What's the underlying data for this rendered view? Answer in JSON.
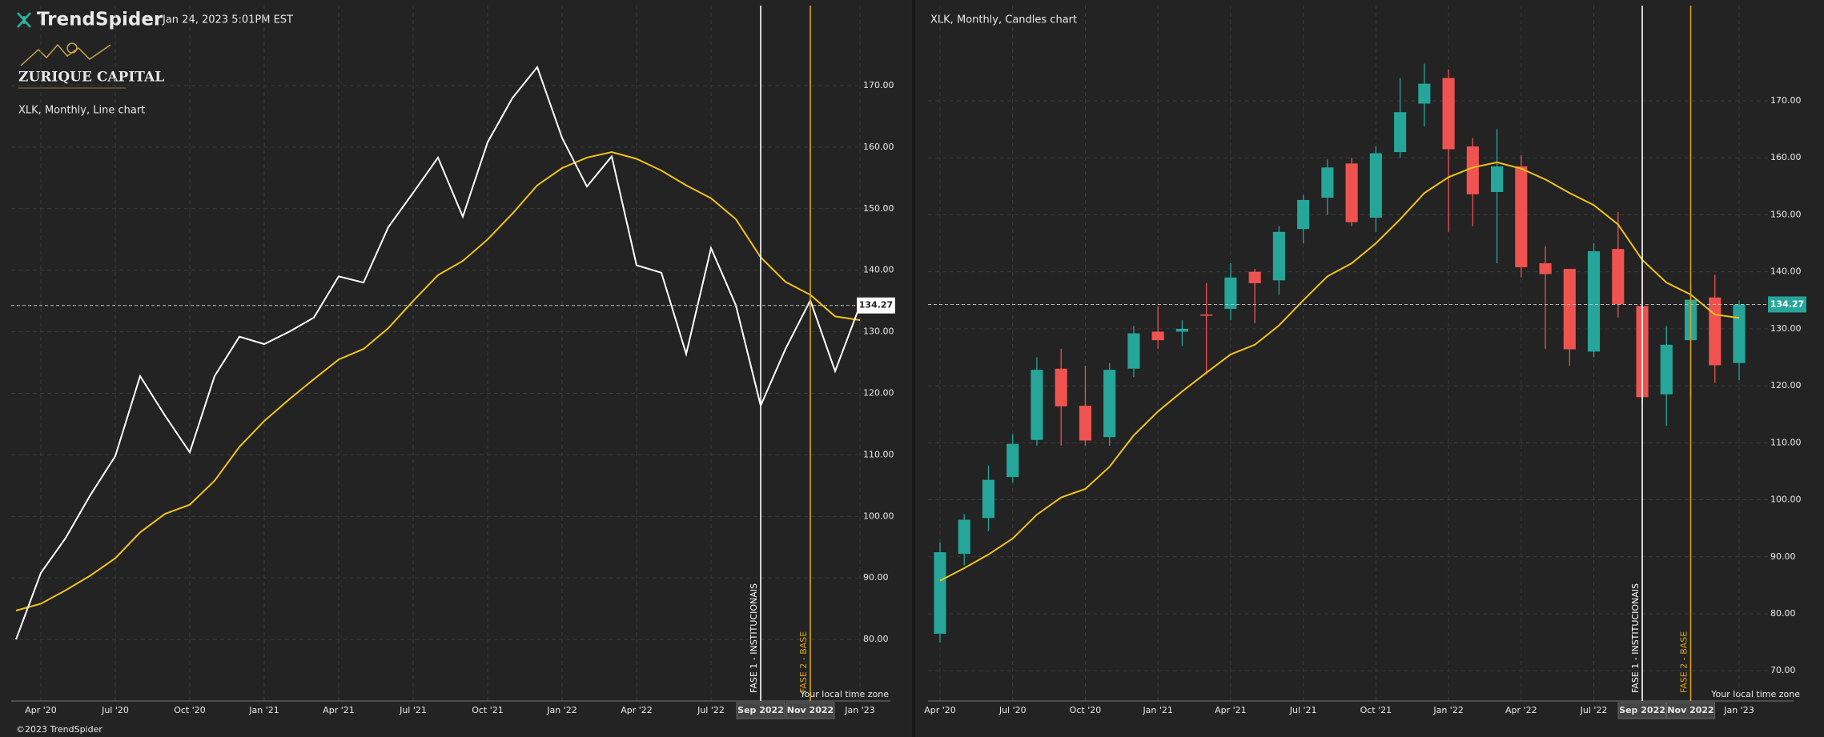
{
  "header": {
    "brand": "TrendSpider",
    "timestamp": "Jan 24, 2023 5:01PM EST",
    "logo_text": "ZURIQUE CAPITAL",
    "timezone_note": "Your local time zone",
    "copyright": "©2023 TrendSpider"
  },
  "chart_data": [
    {
      "type": "line",
      "title": "XLK, Monthly, Line chart",
      "categories": [
        null,
        "Apr '20",
        null,
        null,
        "Jul '20",
        null,
        null,
        "Oct '20",
        null,
        null,
        "Jan '21",
        null,
        null,
        "Apr '21",
        null,
        null,
        "Jul '21",
        null,
        null,
        "Oct '21",
        null,
        null,
        "Jan '22",
        null,
        null,
        "Apr '22",
        null,
        null,
        "Jul '22",
        null,
        null,
        null,
        null,
        null,
        "Jan '23"
      ],
      "series": [
        {
          "color": "#ffffff",
          "values": [
            80,
            90.8,
            96.5,
            103.5,
            109.8,
            122.8,
            116.4,
            110.4,
            122.8,
            129.2,
            128,
            130,
            132.3,
            139,
            138,
            147,
            152.6,
            158.3,
            148.7,
            160.8,
            168,
            173,
            161.5,
            153.6,
            158.5,
            140.8,
            139.6,
            126.4,
            143.6,
            134.3,
            118,
            127.2,
            135.1,
            123.6,
            134.27
          ]
        },
        {
          "color": "#f2c21b",
          "values": [
            84.7,
            85.8,
            88,
            90.4,
            93.2,
            97.4,
            100.4,
            101.9,
            105.8,
            111.3,
            115.5,
            119,
            122.3,
            125.5,
            127.2,
            130.6,
            135,
            139.2,
            141.5,
            145,
            149.2,
            153.8,
            156.6,
            158.3,
            159.2,
            158.1,
            156.2,
            153.8,
            151.7,
            148.3,
            142.1,
            138.1,
            136,
            132.5,
            131.9
          ]
        }
      ],
      "markers": [
        {
          "label": "FASE 1 - INSTITUCIONAIS",
          "date": "Sep 2022",
          "color": "#ffffff"
        },
        {
          "label": "FASE 2 - BASE",
          "date": "Nov 2022",
          "color": "#d9a21b"
        }
      ],
      "ylim": [
        70,
        183
      ],
      "yticks": [
        {
          "value": 80,
          "label": "80.00"
        },
        {
          "value": 90,
          "label": "90.00"
        },
        {
          "value": 100,
          "label": "100.00"
        },
        {
          "value": 110,
          "label": "110.00"
        },
        {
          "value": 120,
          "label": "120.00"
        },
        {
          "value": 130,
          "label": "130.00"
        },
        {
          "value": 140,
          "label": "140.00"
        },
        {
          "value": 150,
          "label": "150.00"
        },
        {
          "value": 160,
          "label": "160.00"
        },
        {
          "value": 170,
          "label": "170.00"
        }
      ],
      "grid": true
    },
    {
      "type": "candlestick",
      "title": "XLK, Monthly, Candles chart",
      "categories": [
        "Apr '20",
        null,
        null,
        "Jul '20",
        null,
        null,
        "Oct '20",
        null,
        null,
        "Jan '21",
        null,
        null,
        "Apr '21",
        null,
        null,
        "Jul '21",
        null,
        null,
        "Oct '21",
        null,
        null,
        "Jan '22",
        null,
        null,
        "Apr '22",
        null,
        null,
        "Jul '22",
        null,
        null,
        null,
        null,
        null,
        "Jan '23"
      ],
      "open": [
        76.5,
        90.5,
        96.8,
        104,
        110.5,
        123,
        116.5,
        111,
        123,
        129.5,
        129.5,
        132.5,
        133.5,
        140,
        138.5,
        147.5,
        153,
        159,
        149.5,
        161,
        169.5,
        174,
        162,
        154,
        158.5,
        141.5,
        140.5,
        126,
        144,
        134,
        118.5,
        128,
        135.5,
        124
      ],
      "high": [
        92.5,
        97.5,
        106,
        111.5,
        125,
        126.5,
        123.5,
        124,
        130.5,
        134,
        131.5,
        138,
        141.5,
        140.5,
        148,
        153.5,
        159.7,
        160,
        162,
        174,
        176.5,
        175.5,
        163.5,
        165,
        160.5,
        144.5,
        140.5,
        145,
        150.5,
        140,
        130.5,
        137.5,
        139.5,
        135
      ],
      "low": [
        75,
        88.5,
        94.5,
        103,
        109.5,
        109.5,
        109.5,
        109.5,
        121.5,
        126.5,
        127,
        122,
        131.5,
        131,
        136,
        145,
        150,
        148,
        147,
        160,
        165.5,
        147,
        148,
        141.5,
        139,
        126.5,
        123.5,
        125,
        132,
        117,
        113,
        118,
        120.5,
        121
      ],
      "close": [
        90.8,
        96.5,
        103.5,
        109.8,
        122.8,
        116.4,
        110.4,
        122.8,
        129.2,
        128,
        130,
        132.3,
        139,
        138,
        147,
        152.6,
        158.3,
        148.7,
        160.8,
        168,
        173,
        161.5,
        153.6,
        158.5,
        140.8,
        139.6,
        126.4,
        143.6,
        134.3,
        118,
        127.2,
        135.1,
        123.6,
        134.27
      ],
      "up_color": "#26a69a",
      "down_color": "#ef5350",
      "overlay": {
        "color": "#f2c21b",
        "values": [
          85.8,
          88,
          90.4,
          93.2,
          97.4,
          100.4,
          101.9,
          105.8,
          111.3,
          115.5,
          119,
          122.3,
          125.5,
          127.2,
          130.6,
          135,
          139.2,
          141.5,
          145,
          149.2,
          153.8,
          156.6,
          158.3,
          159.2,
          158.1,
          156.2,
          153.8,
          151.7,
          148.3,
          142.1,
          138.1,
          136,
          132.5,
          131.9
        ]
      },
      "markers": [
        {
          "label": "FASE 1 - INSTITUCIONAIS",
          "date": "Sep 2022",
          "color": "#ffffff"
        },
        {
          "label": "FASE 2 - BASE",
          "date": "Nov 2022",
          "color": "#d9a21b"
        }
      ],
      "ylim": [
        64.7,
        186.7
      ],
      "yticks": [
        {
          "value": 70,
          "label": "70.00"
        },
        {
          "value": 80,
          "label": "80.00"
        },
        {
          "value": 90,
          "label": "90.00"
        },
        {
          "value": 100,
          "label": "100.00"
        },
        {
          "value": 110,
          "label": "110.00"
        },
        {
          "value": 120,
          "label": "120.00"
        },
        {
          "value": 130,
          "label": "130.00"
        },
        {
          "value": 140,
          "label": "140.00"
        },
        {
          "value": 150,
          "label": "150.00"
        },
        {
          "value": 160,
          "label": "160.00"
        },
        {
          "value": 170,
          "label": "170.00"
        }
      ],
      "grid": true
    }
  ]
}
